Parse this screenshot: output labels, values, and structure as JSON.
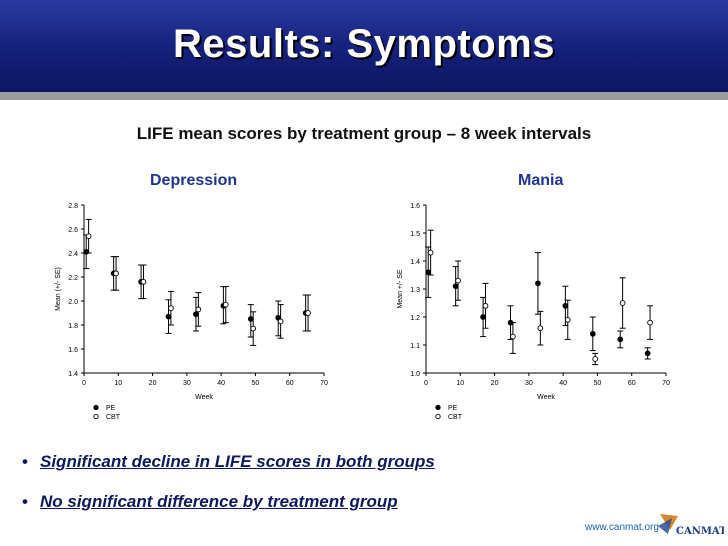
{
  "header": {
    "title": "Results: Symptoms"
  },
  "subtitle": "LIFE mean scores by treatment group – 8 week intervals",
  "chart_data": [
    {
      "type": "scatter",
      "title": "Depression",
      "xlabel": "Week",
      "ylabel": "Mean (+/- SE)",
      "xlim": [
        0,
        70
      ],
      "ylim": [
        1.4,
        2.8
      ],
      "xticks": [
        "0",
        "10",
        "20",
        "30",
        "40",
        "50",
        "60",
        "70"
      ],
      "yticks": [
        "1.4",
        "1.6",
        "1.8",
        "2.0",
        "2.2",
        "2.4",
        "2.6",
        "2.8"
      ],
      "legend_position": "bottom-left",
      "series": [
        {
          "name": "PE",
          "marker": "filled",
          "points": [
            [
              1,
              2.41
            ],
            [
              9,
              2.23
            ],
            [
              17,
              2.16
            ],
            [
              25,
              1.87
            ],
            [
              33,
              1.89
            ],
            [
              41,
              1.96
            ],
            [
              49,
              1.85
            ],
            [
              57,
              1.86
            ],
            [
              65,
              1.9
            ]
          ],
          "err": [
            [
              2.55,
              2.27
            ],
            [
              2.37,
              2.09
            ],
            [
              2.3,
              2.02
            ],
            [
              2.01,
              1.73
            ],
            [
              2.03,
              1.75
            ],
            [
              2.12,
              1.81
            ],
            [
              1.97,
              1.7
            ],
            [
              2.0,
              1.71
            ],
            [
              2.05,
              1.75
            ]
          ]
        },
        {
          "name": "CBT",
          "marker": "open",
          "points": [
            [
              1,
              2.54
            ],
            [
              9,
              2.23
            ],
            [
              17,
              2.16
            ],
            [
              25,
              1.94
            ],
            [
              33,
              1.93
            ],
            [
              41,
              1.97
            ],
            [
              49,
              1.77
            ],
            [
              57,
              1.83
            ],
            [
              65,
              1.9
            ]
          ],
          "err": [
            [
              2.68,
              2.4
            ],
            [
              2.37,
              2.09
            ],
            [
              2.3,
              2.02
            ],
            [
              2.08,
              1.8
            ],
            [
              2.07,
              1.79
            ],
            [
              2.12,
              1.82
            ],
            [
              1.91,
              1.63
            ],
            [
              1.97,
              1.69
            ],
            [
              2.05,
              1.75
            ]
          ]
        }
      ]
    },
    {
      "type": "scatter",
      "title": "Mania",
      "xlabel": "Week",
      "ylabel": "Mean +/- SE",
      "xlim": [
        0,
        70
      ],
      "ylim": [
        1.0,
        1.6
      ],
      "xticks": [
        "0",
        "10",
        "20",
        "30",
        "40",
        "50",
        "60",
        "70"
      ],
      "yticks": [
        "1.0",
        "1.1",
        "1.2",
        "1.3",
        "1.4",
        "1.5",
        "1.6"
      ],
      "legend_position": "bottom-left",
      "series": [
        {
          "name": "PE",
          "marker": "filled",
          "points": [
            [
              1,
              1.36
            ],
            [
              9,
              1.31
            ],
            [
              17,
              1.2
            ],
            [
              25,
              1.18
            ],
            [
              33,
              1.32
            ],
            [
              41,
              1.24
            ],
            [
              49,
              1.14
            ],
            [
              57,
              1.12
            ],
            [
              65,
              1.07
            ]
          ],
          "err": [
            [
              1.45,
              1.27
            ],
            [
              1.38,
              1.24
            ],
            [
              1.27,
              1.13
            ],
            [
              1.24,
              1.12
            ],
            [
              1.43,
              1.21
            ],
            [
              1.31,
              1.17
            ],
            [
              1.2,
              1.08
            ],
            [
              1.15,
              1.09
            ],
            [
              1.09,
              1.05
            ]
          ]
        },
        {
          "name": "CBT",
          "marker": "open",
          "points": [
            [
              1,
              1.43
            ],
            [
              9,
              1.33
            ],
            [
              17,
              1.24
            ],
            [
              25,
              1.13
            ],
            [
              33,
              1.16
            ],
            [
              41,
              1.19
            ],
            [
              49,
              1.05
            ],
            [
              57,
              1.25
            ],
            [
              65,
              1.18
            ]
          ],
          "err": [
            [
              1.51,
              1.35
            ],
            [
              1.4,
              1.26
            ],
            [
              1.32,
              1.16
            ],
            [
              1.18,
              1.07
            ],
            [
              1.22,
              1.1
            ],
            [
              1.26,
              1.12
            ],
            [
              1.07,
              1.03
            ],
            [
              1.34,
              1.16
            ],
            [
              1.24,
              1.12
            ]
          ]
        }
      ]
    }
  ],
  "bullets": [
    "Significant decline in LIFE scores in both groups",
    "No significant difference by treatment group"
  ],
  "footer": {
    "url": "www.canmat.org",
    "logo_text": "CANMAT"
  },
  "colors": {
    "header_blue": "#14207a",
    "title_blue": "#1f3590",
    "bullet_text": "#0b1a5c"
  }
}
